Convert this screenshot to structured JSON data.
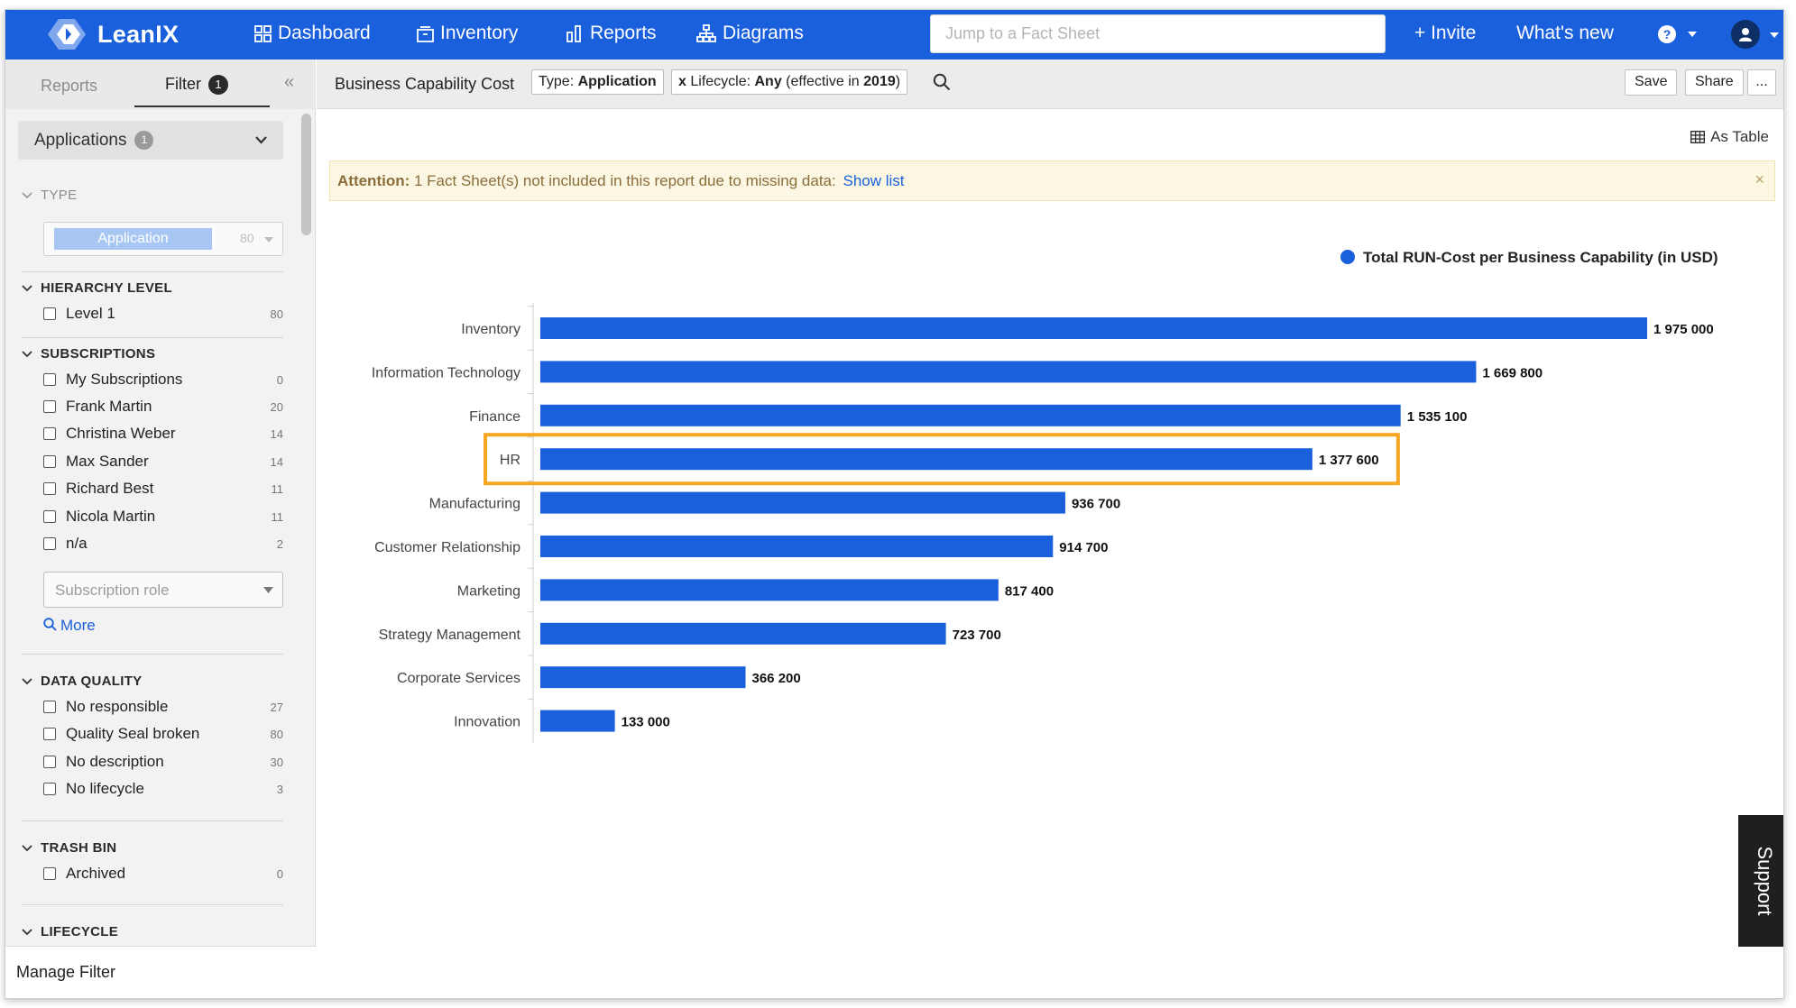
{
  "brand": {
    "name": "LeanIX",
    "accent": "#1a5fdc"
  },
  "nav": {
    "dashboard": "Dashboard",
    "inventory": "Inventory",
    "reports": "Reports",
    "diagrams": "Diagrams",
    "search_placeholder": "Jump to a Fact Sheet",
    "invite": "+ Invite",
    "whats_new": "What's new"
  },
  "sidebar": {
    "tab_reports": "Reports",
    "tab_filter": "Filter",
    "filter_count": "1",
    "collapse": "«",
    "selector_label": "Applications",
    "selector_count": "1",
    "type": {
      "heading": "TYPE",
      "pill": "Application",
      "count": "80"
    },
    "hierarchy": {
      "heading": "HIERARCHY LEVEL",
      "items": [
        {
          "label": "Level 1",
          "count": "80"
        }
      ]
    },
    "subscriptions": {
      "heading": "SUBSCRIPTIONS",
      "items": [
        {
          "label": "My Subscriptions",
          "count": "0"
        },
        {
          "label": "Frank Martin",
          "count": "20"
        },
        {
          "label": "Christina Weber",
          "count": "14"
        },
        {
          "label": "Max Sander",
          "count": "14"
        },
        {
          "label": "Richard Best",
          "count": "11"
        },
        {
          "label": "Nicola Martin",
          "count": "11"
        },
        {
          "label": "n/a",
          "count": "2"
        }
      ],
      "role_placeholder": "Subscription role",
      "more": "More"
    },
    "data_quality": {
      "heading": "DATA QUALITY",
      "items": [
        {
          "label": "No responsible",
          "count": "27"
        },
        {
          "label": "Quality Seal broken",
          "count": "80"
        },
        {
          "label": "No description",
          "count": "30"
        },
        {
          "label": "No lifecycle",
          "count": "3"
        }
      ]
    },
    "trash_bin": {
      "heading": "TRASH BIN",
      "items": [
        {
          "label": "Archived",
          "count": "0"
        }
      ]
    },
    "lifecycle": {
      "heading": "LIFECYCLE"
    },
    "manage_filter": "Manage Filter"
  },
  "toolbar": {
    "title": "Business Capability Cost",
    "chip_type_prefix": "Type: ",
    "chip_type_value": "Application",
    "chip_lifecycle_x": "x",
    "chip_lifecycle_prefix": "Lifecycle: ",
    "chip_lifecycle_value": "Any",
    "chip_lifecycle_suffix_a": " (effective in ",
    "chip_lifecycle_year": "2019",
    "chip_lifecycle_suffix_b": ")",
    "save": "Save",
    "share": "Share",
    "more": "..."
  },
  "main": {
    "as_table": "As Table",
    "attention_label": "Attention:",
    "attention_text": " 1 Fact Sheet(s) not included in this report due to missing data:",
    "attention_link": "Show list",
    "close": "×"
  },
  "chart_data": {
    "type": "bar",
    "orientation": "horizontal",
    "legend": "Total RUN-Cost per Business Capability (in USD)",
    "legend_position": "top-right",
    "bar_color": "#1a5fdc",
    "highlight_color": "#f5a623",
    "highlighted_category": "HR",
    "categories": [
      "Inventory",
      "Information Technology",
      "Finance",
      "HR",
      "Manufacturing",
      "Customer Relationship",
      "Marketing",
      "Strategy Management",
      "Corporate Services",
      "Innovation"
    ],
    "values": [
      1975000,
      1669800,
      1535100,
      1377600,
      936700,
      914700,
      817400,
      723700,
      366200,
      133000
    ],
    "value_labels": [
      "1 975 000",
      "1 669 800",
      "1 535 100",
      "1 377 600",
      "936 700",
      "914 700",
      "817 400",
      "723 700",
      "366 200",
      "133 000"
    ],
    "xlim": [
      0,
      1975000
    ]
  },
  "support": {
    "label": "Support"
  }
}
